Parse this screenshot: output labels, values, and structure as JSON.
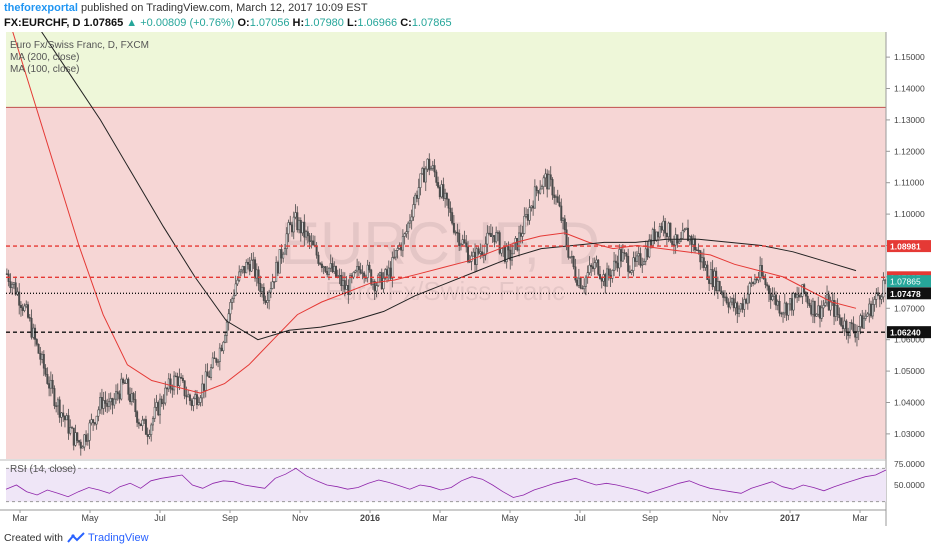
{
  "header": {
    "author": "theforexportal",
    "published": "published on TradingView.com, March 12, 2017 10:09 EST",
    "symbol": "FX:EURCHF, D",
    "last": "1.07865",
    "change": "▲ +0.00809 (+0.76%)",
    "o_label": "O:",
    "o": "1.07056",
    "h_label": "H:",
    "h": "1.07980",
    "l_label": "L:",
    "l": "1.06966",
    "c_label": "C:",
    "c": "1.07865"
  },
  "legend": {
    "title": "Euro Fx/Swiss Franc, D, FXCM",
    "ma200": "MA (200, close)",
    "ma100": "MA (100, close)",
    "rsi": "RSI (14, close)"
  },
  "watermark": {
    "symbol": "EURCHF, D",
    "name": "Euro Fx/Swiss Franc"
  },
  "footer": {
    "created_with": "Created with",
    "brand": "TradingView"
  },
  "colors": {
    "up": "#26a69a",
    "candle": "#4a4a4a",
    "ma100": "#e53935",
    "ma200": "#222222",
    "resistance_zone": "#f6d6d5",
    "upper_zone": "#eef7d9",
    "rsi_band": "#efe6f7",
    "rsi_line": "#8e24aa"
  },
  "chart_data": {
    "type": "candlestick",
    "symbol": "FX:EURCHF",
    "timeframe": "D",
    "price_axis": {
      "min": 1.022,
      "max": 1.158,
      "ticks": [
        "1.15000",
        "1.14000",
        "1.13000",
        "1.12000",
        "1.11000",
        "1.10000",
        "1.09000",
        "1.08000",
        "1.07000",
        "1.06000",
        "1.05000",
        "1.04000",
        "1.03000"
      ]
    },
    "time_axis_labels": [
      "Mar",
      "May",
      "Jul",
      "Sep",
      "Nov",
      "2016",
      "Mar",
      "May",
      "Jul",
      "Sep",
      "Nov",
      "2017",
      "Mar"
    ],
    "zones": [
      {
        "name": "upper",
        "from": 1.134,
        "to": 1.158,
        "color": "#eef7d9"
      },
      {
        "name": "middle",
        "from": 1.022,
        "to": 1.134,
        "color": "#f6d6d5"
      }
    ],
    "levels": [
      {
        "price": 1.08981,
        "label": "1.08981",
        "style": "dashed",
        "color": "#e53935"
      },
      {
        "price": 1.07987,
        "label": "1.07987",
        "style": "dashed",
        "color": "#e53935"
      },
      {
        "price": 1.07478,
        "label": "1.07478",
        "style": "dotted",
        "color": "#111111"
      },
      {
        "price": 1.0624,
        "label": "1.06240",
        "style": "dashed",
        "color": "#111111"
      }
    ],
    "last_price": {
      "price": 1.07865,
      "label": "1.07865"
    },
    "close_path": [
      1.081,
      1.077,
      1.072,
      1.066,
      1.058,
      1.051,
      1.044,
      1.039,
      1.034,
      1.029,
      1.027,
      1.031,
      1.036,
      1.041,
      1.038,
      1.043,
      1.046,
      1.04,
      1.034,
      1.031,
      1.036,
      1.041,
      1.045,
      1.048,
      1.044,
      1.04,
      1.043,
      1.047,
      1.052,
      1.058,
      1.068,
      1.078,
      1.082,
      1.085,
      1.079,
      1.074,
      1.079,
      1.086,
      1.094,
      1.098,
      1.095,
      1.091,
      1.087,
      1.084,
      1.082,
      1.079,
      1.076,
      1.079,
      1.084,
      1.081,
      1.078,
      1.079,
      1.082,
      1.089,
      1.093,
      1.103,
      1.11,
      1.116,
      1.113,
      1.106,
      1.1,
      1.094,
      1.09,
      1.085,
      1.088,
      1.091,
      1.094,
      1.089,
      1.086,
      1.09,
      1.096,
      1.103,
      1.109,
      1.111,
      1.108,
      1.1,
      1.089,
      1.081,
      1.078,
      1.082,
      1.084,
      1.079,
      1.082,
      1.087,
      1.085,
      1.083,
      1.086,
      1.09,
      1.095,
      1.097,
      1.093,
      1.089,
      1.094,
      1.091,
      1.086,
      1.081,
      1.079,
      1.075,
      1.072,
      1.069,
      1.073,
      1.078,
      1.081,
      1.077,
      1.073,
      1.07,
      1.071,
      1.073,
      1.075,
      1.071,
      1.069,
      1.072,
      1.07,
      1.066,
      1.064,
      1.063,
      1.066,
      1.07,
      1.074,
      1.0787
    ],
    "ma100_path": [
      1.165,
      1.14,
      1.115,
      1.09,
      1.068,
      1.052,
      1.047,
      1.045,
      1.043,
      1.046,
      1.052,
      1.06,
      1.068,
      1.072,
      1.075,
      1.078,
      1.079,
      1.081,
      1.083,
      1.085,
      1.088,
      1.091,
      1.093,
      1.094,
      1.091,
      1.089,
      1.09,
      1.089,
      1.088,
      1.087,
      1.084,
      1.082,
      1.08,
      1.076,
      1.072,
      1.07
    ],
    "ma200_path": [
      1.175,
      1.16,
      1.145,
      1.13,
      1.113,
      1.096,
      1.08,
      1.066,
      1.06,
      1.063,
      1.064,
      1.066,
      1.069,
      1.074,
      1.078,
      1.082,
      1.086,
      1.089,
      1.09,
      1.091,
      1.091,
      1.092,
      1.092,
      1.091,
      1.09,
      1.088,
      1.085,
      1.082
    ],
    "rsi": {
      "label": "RSI (14, close)",
      "ticks": [
        "75.0000",
        "50.0000"
      ],
      "bands": [
        30,
        70
      ],
      "path": [
        45,
        50,
        42,
        38,
        44,
        40,
        36,
        42,
        47,
        44,
        40,
        48,
        52,
        46,
        55,
        58,
        60,
        62,
        50,
        46,
        52,
        55,
        54,
        50,
        48,
        46,
        58,
        63,
        70,
        61,
        55,
        50,
        48,
        45,
        47,
        52,
        56,
        53,
        49,
        45,
        50,
        48,
        44,
        47,
        55,
        60,
        57,
        50,
        42,
        35,
        38,
        44,
        48,
        52,
        55,
        58,
        54,
        50,
        52,
        50,
        47,
        44,
        40,
        44,
        48,
        52,
        55,
        50,
        46,
        44,
        42,
        40,
        46,
        50,
        54,
        48,
        45,
        50,
        47,
        43,
        48,
        52,
        56,
        60,
        62,
        68
      ]
    }
  }
}
